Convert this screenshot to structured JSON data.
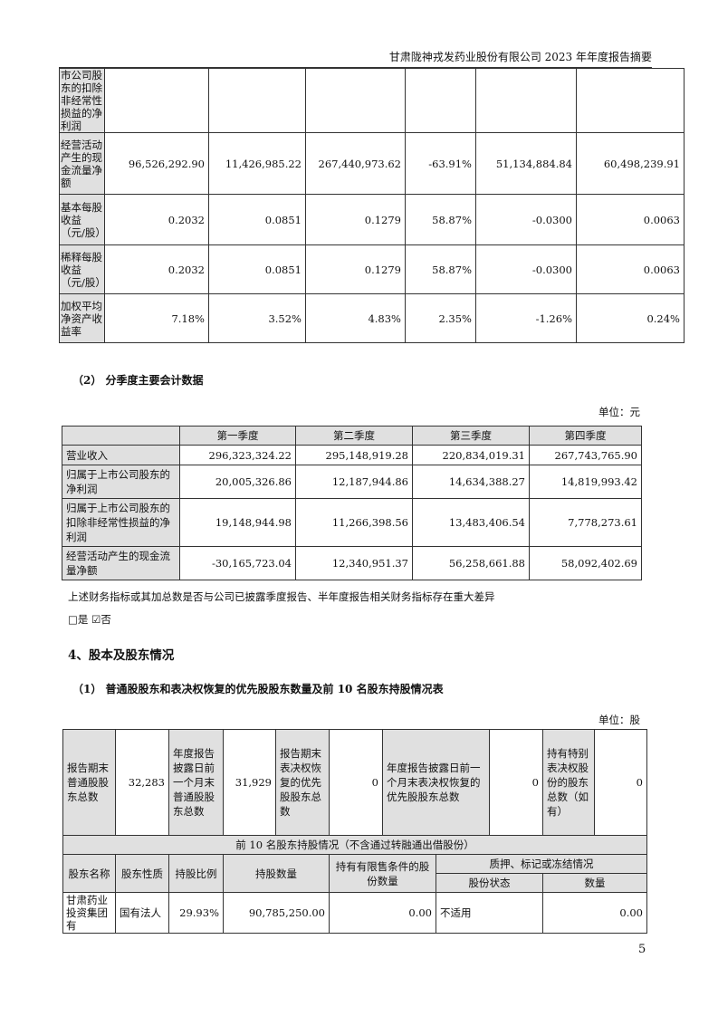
{
  "header": {
    "title": "甘肃陇神戎发药业股份有限公司 2023 年年度报告摘要"
  },
  "table1": {
    "rows": [
      {
        "label": "市公司股东的扣除非经常性损益的净利润",
        "values": [
          "",
          "",
          "",
          "",
          "",
          ""
        ]
      },
      {
        "label": "经营活动产生的现金流量净额",
        "values": [
          "96,526,292.90",
          "11,426,985.22",
          "267,440,973.62",
          "-63.91%",
          "51,134,884.84",
          "60,498,239.91"
        ]
      },
      {
        "label": "基本每股收益（元/股）",
        "values": [
          "0.2032",
          "0.0851",
          "0.1279",
          "58.87%",
          "-0.0300",
          "0.0063"
        ]
      },
      {
        "label": "稀释每股收益（元/股）",
        "values": [
          "0.2032",
          "0.0851",
          "0.1279",
          "58.87%",
          "-0.0300",
          "0.0063"
        ]
      },
      {
        "label": "加权平均净资产收益率",
        "values": [
          "7.18%",
          "3.52%",
          "4.83%",
          "2.35%",
          "-1.26%",
          "0.24%"
        ]
      }
    ]
  },
  "section2": {
    "title": "（2） 分季度主要会计数据",
    "unit": "单位：元"
  },
  "table2": {
    "headers": [
      "",
      "第一季度",
      "第二季度",
      "第三季度",
      "第四季度"
    ],
    "rows": [
      {
        "label": "营业收入",
        "values": [
          "296,323,324.22",
          "295,148,919.28",
          "220,834,019.31",
          "267,743,765.90"
        ]
      },
      {
        "label": "归属于上市公司股东的净利润",
        "values": [
          "20,005,326.86",
          "12,187,944.86",
          "14,634,388.27",
          "14,819,993.42"
        ]
      },
      {
        "label": "归属于上市公司股东的扣除非经常性损益的净利润",
        "values": [
          "19,148,944.98",
          "11,266,398.56",
          "13,483,406.54",
          "7,778,273.61"
        ]
      },
      {
        "label": "经营活动产生的现金流量净额",
        "values": [
          "-30,165,723.04",
          "12,340,951.37",
          "56,258,661.88",
          "58,092,402.69"
        ]
      }
    ]
  },
  "note": "上述财务指标或其加总数是否与公司已披露季度报告、半年度报告相关财务指标存在重大差异",
  "checkbox": {
    "yes": "□是",
    "no": "☑否",
    "selected": "否"
  },
  "section4": {
    "title": "4、股本及股东情况"
  },
  "section4_1": {
    "title": "（1） 普通股股东和表决权恢复的优先股股东数量及前 10 名股东持股情况表",
    "unit": "单位：股"
  },
  "table3": {
    "summary": [
      {
        "label": "报告期末普通股股东总数",
        "value": "32,283"
      },
      {
        "label": "年度报告披露日前一个月末普通股股东总数",
        "value": "31,929"
      },
      {
        "label": "报告期末表决权恢复的优先股股东总数",
        "value": "0"
      },
      {
        "label": "年度报告披露日前一个月末表决权恢复的优先股股东总数",
        "value": "0"
      },
      {
        "label": "持有特别表决权股份的股东总数（如有）",
        "value": "0"
      }
    ],
    "top10_title": "前 10 名股东持股情况（不含通过转融通出借股份）",
    "headers": {
      "name": "股东名称",
      "nature": "股东性质",
      "ratio": "持股比例",
      "count": "持股数量",
      "restricted": "持有有限售条件的股份数量",
      "pledge": "质押、标记或冻结情况",
      "status": "股份状态",
      "qty": "数量"
    },
    "rows": [
      {
        "name": "甘肃药业投资集团有",
        "nature": "国有法人",
        "ratio": "29.93%",
        "count": "90,785,250.00",
        "restricted": "0.00",
        "status": "不适用",
        "qty": "0.00"
      }
    ]
  },
  "footer": {
    "page": "5"
  }
}
